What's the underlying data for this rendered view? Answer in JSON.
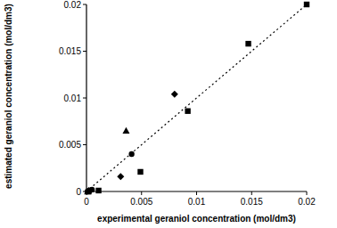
{
  "chart_data": {
    "type": "scatter",
    "x_label": "experimental geraniol concentration (mol/dm3)",
    "y_label": "estimated geraniol concentration (mol/dm3)",
    "xlim": [
      0,
      0.02
    ],
    "ylim": [
      0,
      0.02
    ],
    "xticks": [
      0,
      0.005,
      0.01,
      0.015,
      0.02
    ],
    "yticks": [
      0,
      0.005,
      0.01,
      0.015,
      0.02
    ],
    "grid": false,
    "series": [
      {
        "type": "line",
        "line_style": "dotted",
        "color": "#000000",
        "x": [
          0,
          0.02
        ],
        "values": [
          0,
          0.02
        ]
      },
      {
        "marker": "square",
        "color": "#000000",
        "x": [
          0.02,
          0.0147,
          0.0092,
          0.0049,
          0.0011,
          0.0002
        ],
        "values": [
          0.02,
          0.0158,
          0.0086,
          0.0021,
          0.0001,
          0.0
        ]
      },
      {
        "marker": "circle",
        "color": "#000000",
        "x": [
          0.0041,
          0.0001,
          0.0003,
          0.0005
        ],
        "values": [
          0.004,
          0.0,
          0.0001,
          0.0002
        ]
      },
      {
        "marker": "diamond",
        "color": "#000000",
        "x": [
          0.008,
          0.0031,
          0.0002
        ],
        "values": [
          0.0104,
          0.0016,
          0.0001
        ]
      },
      {
        "marker": "triangle",
        "color": "#000000",
        "x": [
          0.0036,
          0.0001
        ],
        "values": [
          0.0065,
          0.0
        ]
      }
    ]
  }
}
